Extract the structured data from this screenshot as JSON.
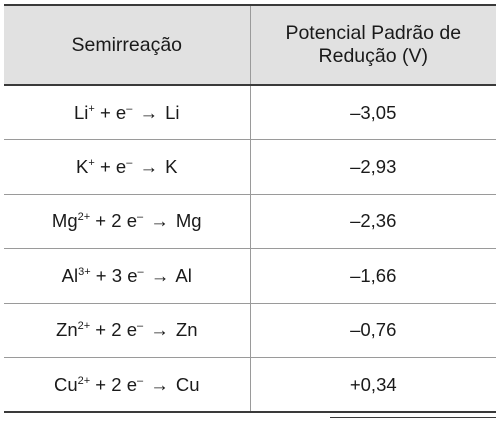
{
  "table": {
    "headers": {
      "col1": "Semirreação",
      "col2_line1": "Potencial Padrão de",
      "col2_line2": "Redução (V)"
    },
    "rows": [
      {
        "reactant": "Li",
        "charge": "+",
        "electrons": "",
        "product": "Li",
        "potential": "–3,05"
      },
      {
        "reactant": "K",
        "charge": "+",
        "electrons": "",
        "product": "K",
        "potential": "–2,93"
      },
      {
        "reactant": "Mg",
        "charge": "2+",
        "electrons": "2 ",
        "product": "Mg",
        "potential": "–2,36"
      },
      {
        "reactant": "Al",
        "charge": "3+",
        "electrons": "3 ",
        "product": "Al",
        "potential": "–1,66"
      },
      {
        "reactant": "Zn",
        "charge": "2+",
        "electrons": "2 ",
        "product": "Zn",
        "potential": "–0,76"
      },
      {
        "reactant": "Cu",
        "charge": "2+",
        "electrons": "2 ",
        "product": "Cu",
        "potential": "+0,34"
      }
    ],
    "plus_sign": " + ",
    "electron_symbol": "e",
    "electron_charge": "–",
    "arrow": "→"
  }
}
